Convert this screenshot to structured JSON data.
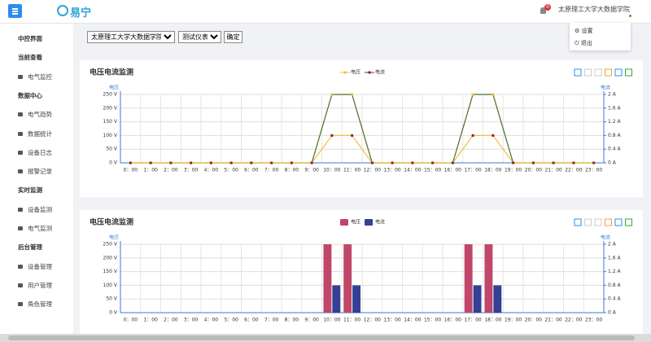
{
  "header": {
    "logo": "易宁",
    "badge": "0",
    "user": "太原理工大学大数据学院",
    "menu": [
      "设置",
      "退出"
    ]
  },
  "sidebar": [
    {
      "title": "中控界面",
      "items": []
    },
    {
      "title": "当前查看",
      "items": [
        "电气监控"
      ]
    },
    {
      "title": "数据中心",
      "items": [
        "电气趋势",
        "数据统计",
        "设备日志",
        "报警记录"
      ]
    },
    {
      "title": "实时监测",
      "items": [
        "设备监测",
        "电气监测"
      ]
    },
    {
      "title": "后台管理",
      "items": [
        "设备管理",
        "用户管理",
        "角色管理"
      ]
    }
  ],
  "filter": {
    "org": "太原理工大学大数据学院",
    "device": "测试仪表01",
    "button": "确定"
  },
  "chart_data": [
    {
      "type": "line",
      "title": "电压电流监测",
      "y_name": "电压",
      "y2_name": "电流",
      "grid": true,
      "categories": [
        "0：00",
        "1：00",
        "2：00",
        "3：00",
        "4：00",
        "5：00",
        "6：00",
        "7：00",
        "8：00",
        "9：00",
        "10：00",
        "11：00",
        "12：00",
        "13：00",
        "14：00",
        "15：00",
        "16：00",
        "17：00",
        "18：00",
        "19：00",
        "20：00",
        "21：00",
        "22：00",
        "23：00"
      ],
      "ylim": [
        0,
        250
      ],
      "yticks": [
        {
          "value": 0,
          "label": "0 V"
        },
        {
          "value": 50,
          "label": "50 V"
        },
        {
          "value": 100,
          "label": "100 V"
        },
        {
          "value": 150,
          "label": "150 V"
        },
        {
          "value": 200,
          "label": "200 V"
        },
        {
          "value": 250,
          "label": "250 V"
        }
      ],
      "y2lim": [
        0,
        2
      ],
      "y2ticks": [
        {
          "value": 0,
          "label": "0 A"
        },
        {
          "value": 0.4,
          "label": "0.4 A"
        },
        {
          "value": 0.8,
          "label": "0.8 A"
        },
        {
          "value": 1.2,
          "label": "1.2 A"
        },
        {
          "value": 1.6,
          "label": "1.6 A"
        },
        {
          "value": 2,
          "label": "2 A"
        }
      ],
      "series": [
        {
          "name": "电压",
          "color": "#f0c040",
          "line_color": "#4d6b22",
          "values": [
            0,
            0,
            0,
            0,
            0,
            0,
            0,
            0,
            0,
            0,
            250,
            250,
            0,
            0,
            0,
            0,
            0,
            250,
            250,
            0,
            0,
            0,
            0,
            0
          ]
        },
        {
          "name": "电流",
          "color": "#8b2232",
          "line_color": "#f0c040",
          "axis": "y2",
          "values": [
            0,
            0,
            0,
            0,
            0,
            0,
            0,
            0,
            0,
            0,
            0.8,
            0.8,
            0,
            0,
            0,
            0,
            0,
            0.8,
            0.8,
            0,
            0,
            0,
            0,
            0
          ]
        }
      ]
    },
    {
      "type": "bar",
      "title": "电压电流监测",
      "y_name": "电压",
      "y2_name": "电流",
      "grid": true,
      "categories": [
        "0：00",
        "1：00",
        "2：00",
        "3：00",
        "4：00",
        "5：00",
        "6：00",
        "7：00",
        "8：00",
        "9：00",
        "10：00",
        "11：00",
        "12：00",
        "13：00",
        "14：00",
        "15：00",
        "16：00",
        "17：00",
        "18：00",
        "19：00",
        "20：00",
        "21：00",
        "22：00",
        "23：00"
      ],
      "ylim": [
        0,
        250
      ],
      "yticks": [
        {
          "value": 0,
          "label": "0 V"
        },
        {
          "value": 50,
          "label": "50 V"
        },
        {
          "value": 100,
          "label": "100 V"
        },
        {
          "value": 150,
          "label": "150 V"
        },
        {
          "value": 200,
          "label": "200 V"
        },
        {
          "value": 250,
          "label": "250 V"
        }
      ],
      "y2lim": [
        0,
        2
      ],
      "y2ticks": [
        {
          "value": 0,
          "label": "0 A"
        },
        {
          "value": 0.4,
          "label": "0.4 A"
        },
        {
          "value": 0.8,
          "label": "0.8 A"
        },
        {
          "value": 1.2,
          "label": "1.2 A"
        },
        {
          "value": 1.6,
          "label": "1.6 A"
        },
        {
          "value": 2,
          "label": "2 A"
        }
      ],
      "series": [
        {
          "name": "电压",
          "color": "#c0476a",
          "values": [
            0,
            0,
            0,
            0,
            0,
            0,
            0,
            0,
            0,
            0,
            250,
            250,
            0,
            0,
            0,
            0,
            0,
            250,
            250,
            0,
            0,
            0,
            0,
            0
          ]
        },
        {
          "name": "电流",
          "color": "#343f96",
          "axis": "y2",
          "values": [
            0,
            0,
            0,
            0,
            0,
            0,
            0,
            0,
            0,
            0,
            0.8,
            0.8,
            0,
            0,
            0,
            0,
            0,
            0.8,
            0.8,
            0,
            0,
            0,
            0,
            0
          ]
        }
      ]
    }
  ]
}
